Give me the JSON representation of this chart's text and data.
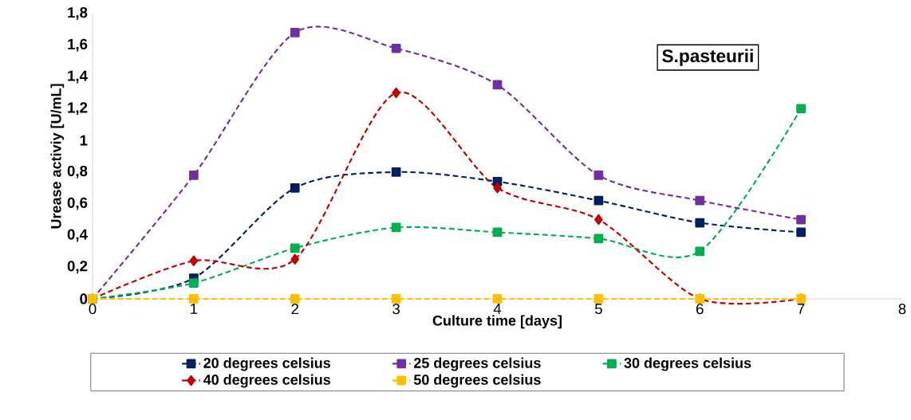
{
  "chart_data": {
    "type": "line",
    "title": "S.pasteurii",
    "xlabel": "Culture time  [days]",
    "ylabel": "Urease activiy [U/mL]",
    "x": [
      0,
      1,
      2,
      3,
      4,
      5,
      6,
      7
    ],
    "series": [
      {
        "name": "20 degrees celsius",
        "color": "#002060",
        "values": [
          0,
          0.13,
          0.7,
          0.8,
          0.74,
          0.62,
          0.48,
          0.42
        ]
      },
      {
        "name": "25 degrees celsius",
        "color": "#7030a0",
        "values": [
          0,
          0.78,
          1.68,
          1.58,
          1.35,
          0.78,
          0.62,
          0.5
        ]
      },
      {
        "name": "30 degrees celsius",
        "color": "#00b050",
        "values": [
          0,
          0.1,
          0.32,
          0.45,
          0.42,
          0.38,
          0.3,
          1.2
        ]
      },
      {
        "name": "40 degrees celsius",
        "color": "#c00000",
        "marker": "diamond",
        "values": [
          0,
          0.24,
          0.25,
          1.3,
          0.7,
          0.5,
          0,
          0
        ]
      },
      {
        "name": "50 degrees celsius",
        "color": "#ffc000",
        "values": [
          0,
          0,
          0,
          0,
          0,
          0,
          0,
          0
        ]
      }
    ],
    "xlim": [
      0,
      8
    ],
    "xticks": [
      0,
      1,
      2,
      3,
      4,
      5,
      6,
      7,
      8
    ],
    "ylim": [
      0,
      1.8
    ],
    "yticks": [
      {
        "value": 0,
        "label": "0"
      },
      {
        "value": 0.2,
        "label": "0,2"
      },
      {
        "value": 0.4,
        "label": "0,4"
      },
      {
        "value": 0.6,
        "label": "0,6"
      },
      {
        "value": 0.8,
        "label": "0,8"
      },
      {
        "value": 1,
        "label": "1"
      },
      {
        "value": 1.2,
        "label": "1,2"
      },
      {
        "value": 1.4,
        "label": "1,4"
      },
      {
        "value": 1.6,
        "label": "1,6"
      },
      {
        "value": 1.8,
        "label": "1,8"
      }
    ],
    "grid": false,
    "legend": "bottom",
    "marker": "square",
    "line_style": "dashed"
  }
}
